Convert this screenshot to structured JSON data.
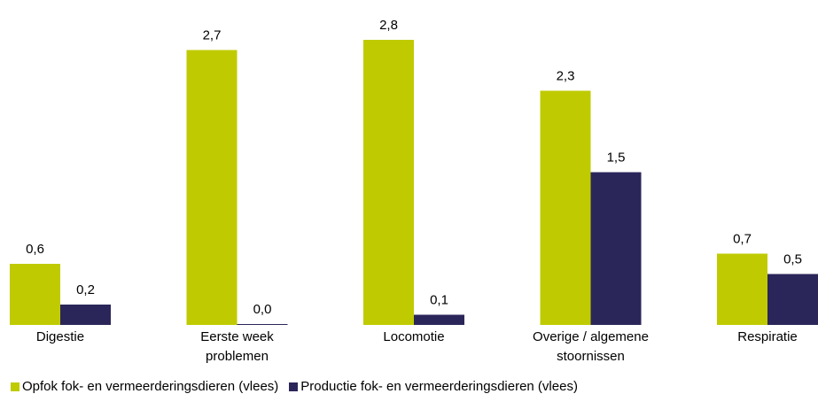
{
  "chart_data": {
    "type": "bar",
    "categories": [
      "Digestie",
      "Eerste week problemen",
      "Locomotie",
      "Overige / algemene stoornissen",
      "Respiratie"
    ],
    "series": [
      {
        "name": "Opfok fok- en vermeerderingsdieren (vlees)",
        "color": "#bfcb00",
        "values": [
          0.6,
          2.7,
          2.8,
          2.3,
          0.7
        ],
        "value_labels": [
          "0,6",
          "2,7",
          "2,8",
          "2,3",
          "0,7"
        ]
      },
      {
        "name": "Productie fok- en vermeerderingsdieren (vlees)",
        "color": "#2b2659",
        "values": [
          0.2,
          0.0,
          0.1,
          1.5,
          0.5
        ],
        "value_labels": [
          "0,2",
          "0,0",
          "0,1",
          "1,5",
          "0,5"
        ]
      }
    ],
    "legend": "bottom"
  }
}
